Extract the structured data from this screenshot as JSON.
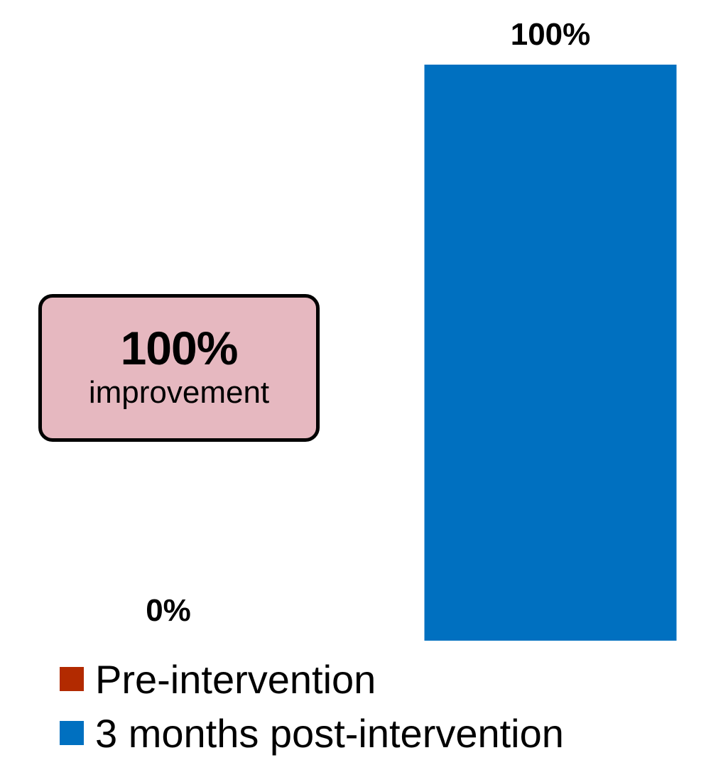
{
  "chart_data": {
    "type": "bar",
    "categories": [
      "Pre-intervention",
      "3 months post-intervention"
    ],
    "values": [
      0,
      100
    ],
    "data_labels": [
      "0%",
      "100%"
    ],
    "colors": [
      "#b22a00",
      "#0070c0"
    ],
    "ylim": [
      0,
      100
    ],
    "grid": false,
    "axes_visible": false,
    "legend_position": "bottom-left"
  },
  "callout": {
    "value": "100%",
    "text": "improvement",
    "background": "#e6b8c0"
  },
  "legend": {
    "items": [
      {
        "label": "Pre-intervention",
        "color": "#b22a00"
      },
      {
        "label": "3 months post-intervention",
        "color": "#0070c0"
      }
    ]
  }
}
